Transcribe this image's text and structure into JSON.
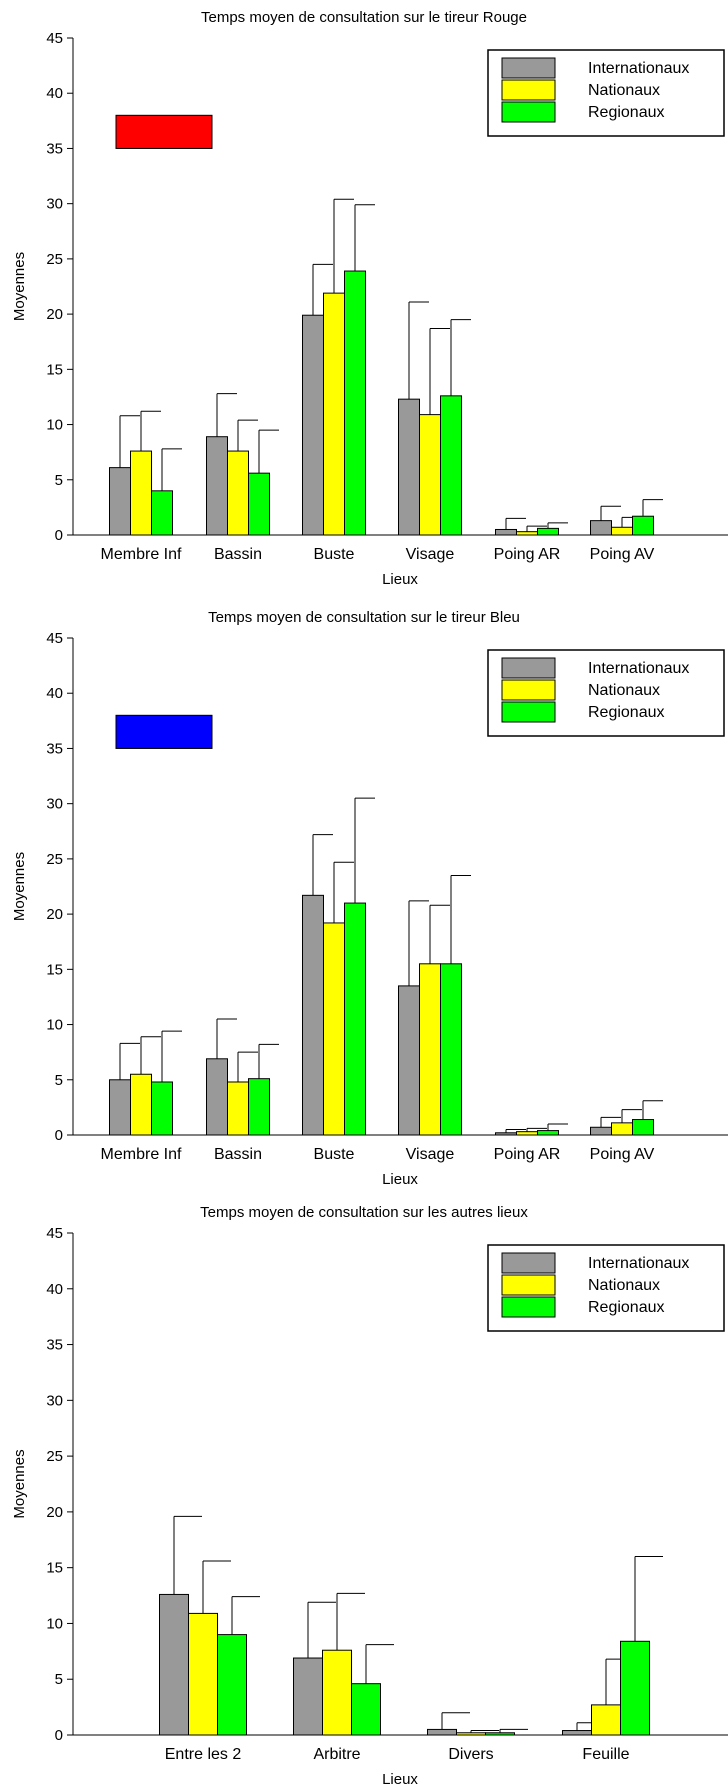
{
  "colors": {
    "Internationaux": "#999999",
    "Nationaux": "#ffff00",
    "Regionaux": "#00ff00",
    "marker_rouge": "#ff0000",
    "marker_bleu": "#0000ff"
  },
  "chart_data": [
    {
      "type": "bar",
      "title": "Temps moyen de consultation sur le tireur Rouge",
      "xlabel": "Lieux",
      "ylabel": "Moyennes",
      "ylim": [
        0,
        45
      ],
      "yticks": [
        0,
        5,
        10,
        15,
        20,
        25,
        30,
        35,
        40,
        45
      ],
      "legend_position": "top-right",
      "marker_color": "#ff0000",
      "marker_range": [
        35,
        38
      ],
      "categories": [
        "Membre Inf",
        "Bassin",
        "Buste",
        "Visage",
        "Poing AR",
        "Poing AV"
      ],
      "series": [
        {
          "name": "Internationaux",
          "values": [
            6.1,
            8.9,
            19.9,
            12.3,
            0.5,
            1.3
          ],
          "error_upper": [
            10.8,
            12.8,
            24.5,
            21.1,
            1.5,
            2.6
          ]
        },
        {
          "name": "Nationaux",
          "values": [
            7.6,
            7.6,
            21.9,
            10.9,
            0.3,
            0.7
          ],
          "error_upper": [
            11.2,
            10.4,
            30.4,
            18.7,
            0.8,
            1.6
          ]
        },
        {
          "name": "Regionaux",
          "values": [
            4.0,
            5.6,
            23.9,
            12.6,
            0.6,
            1.7
          ],
          "error_upper": [
            7.8,
            9.5,
            29.9,
            19.5,
            1.1,
            3.2
          ]
        }
      ]
    },
    {
      "type": "bar",
      "title": "Temps moyen de consultation sur le tireur Bleu",
      "xlabel": "Lieux",
      "ylabel": "Moyennes",
      "ylim": [
        0,
        45
      ],
      "yticks": [
        0,
        5,
        10,
        15,
        20,
        25,
        30,
        35,
        40,
        45
      ],
      "legend_position": "top-right",
      "marker_color": "#0000ff",
      "marker_range": [
        35,
        38
      ],
      "categories": [
        "Membre Inf",
        "Bassin",
        "Buste",
        "Visage",
        "Poing AR",
        "Poing AV"
      ],
      "series": [
        {
          "name": "Internationaux",
          "values": [
            5.0,
            6.9,
            21.7,
            13.5,
            0.2,
            0.7
          ],
          "error_upper": [
            8.3,
            10.5,
            27.2,
            21.2,
            0.5,
            1.6
          ]
        },
        {
          "name": "Nationaux",
          "values": [
            5.5,
            4.8,
            19.2,
            15.5,
            0.3,
            1.1
          ],
          "error_upper": [
            8.9,
            7.5,
            24.7,
            20.8,
            0.6,
            2.3
          ]
        },
        {
          "name": "Regionaux",
          "values": [
            4.8,
            5.1,
            21.0,
            15.5,
            0.4,
            1.4
          ],
          "error_upper": [
            9.4,
            8.2,
            30.5,
            23.5,
            1.0,
            3.1
          ]
        }
      ]
    },
    {
      "type": "bar",
      "title": "Temps moyen de consultation sur les autres lieux",
      "xlabel": "Lieux",
      "ylabel": "Moyennes",
      "ylim": [
        0,
        45
      ],
      "yticks": [
        0,
        5,
        10,
        15,
        20,
        25,
        30,
        35,
        40,
        45
      ],
      "legend_position": "top-right",
      "categories": [
        "Entre les 2",
        "Arbitre",
        "Divers",
        "Feuille"
      ],
      "series": [
        {
          "name": "Internationaux",
          "values": [
            12.6,
            6.9,
            0.5,
            0.4
          ],
          "error_upper": [
            19.6,
            11.9,
            2.0,
            1.1
          ]
        },
        {
          "name": "Nationaux",
          "values": [
            10.9,
            7.6,
            0.2,
            2.7
          ],
          "error_upper": [
            15.6,
            12.7,
            0.4,
            6.8
          ]
        },
        {
          "name": "Regionaux",
          "values": [
            9.0,
            4.6,
            0.2,
            8.4
          ],
          "error_upper": [
            12.4,
            8.1,
            0.5,
            16.0
          ]
        }
      ]
    }
  ]
}
